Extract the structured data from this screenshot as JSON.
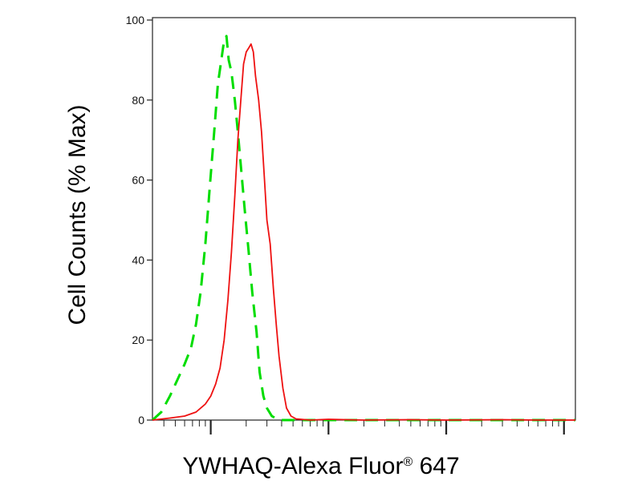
{
  "chart_data": {
    "type": "line",
    "xlabel_main": "YWHAQ-Alexa Fluor",
    "xlabel_sup": "®",
    "xlabel_tail": " 647",
    "ylabel": "Cell Counts (% Max)",
    "x_scale": "log",
    "xlim": [
      0.32,
      1250
    ],
    "ylim": [
      0,
      100
    ],
    "yticks": [
      0,
      20,
      40,
      60,
      80,
      100
    ],
    "grid": false,
    "legend": "none",
    "series": [
      {
        "color": "#00dd00",
        "style": "dashed",
        "points": [
          [
            0.32,
            0
          ],
          [
            0.38,
            2
          ],
          [
            0.45,
            6
          ],
          [
            0.52,
            10
          ],
          [
            0.6,
            14
          ],
          [
            0.68,
            18
          ],
          [
            0.75,
            24
          ],
          [
            0.82,
            32
          ],
          [
            0.9,
            44
          ],
          [
            0.98,
            58
          ],
          [
            1.07,
            72
          ],
          [
            1.15,
            84
          ],
          [
            1.23,
            90
          ],
          [
            1.3,
            95
          ],
          [
            1.36,
            96
          ],
          [
            1.42,
            90
          ],
          [
            1.5,
            87
          ],
          [
            1.6,
            80
          ],
          [
            1.7,
            72
          ],
          [
            1.82,
            62
          ],
          [
            1.95,
            52
          ],
          [
            2.1,
            42
          ],
          [
            2.25,
            32
          ],
          [
            2.45,
            22
          ],
          [
            2.6,
            12
          ],
          [
            2.8,
            6
          ],
          [
            3.0,
            3
          ],
          [
            3.3,
            1
          ],
          [
            3.8,
            0
          ],
          [
            5,
            0
          ],
          [
            10,
            0
          ],
          [
            30,
            0
          ],
          [
            100,
            0
          ],
          [
            400,
            0
          ],
          [
            1250,
            0
          ]
        ]
      },
      {
        "color": "#ee1111",
        "style": "solid",
        "points": [
          [
            0.32,
            0
          ],
          [
            0.45,
            0.5
          ],
          [
            0.6,
            1
          ],
          [
            0.75,
            2
          ],
          [
            0.9,
            4
          ],
          [
            1.0,
            6
          ],
          [
            1.1,
            9
          ],
          [
            1.2,
            13
          ],
          [
            1.3,
            20
          ],
          [
            1.4,
            30
          ],
          [
            1.5,
            42
          ],
          [
            1.6,
            56
          ],
          [
            1.7,
            70
          ],
          [
            1.8,
            80
          ],
          [
            1.9,
            89
          ],
          [
            2.0,
            92
          ],
          [
            2.1,
            93
          ],
          [
            2.2,
            94
          ],
          [
            2.3,
            92
          ],
          [
            2.4,
            86
          ],
          [
            2.55,
            80
          ],
          [
            2.7,
            72
          ],
          [
            2.85,
            61
          ],
          [
            3.0,
            50
          ],
          [
            3.2,
            44
          ],
          [
            3.4,
            33
          ],
          [
            3.6,
            24
          ],
          [
            3.8,
            16
          ],
          [
            4.1,
            8
          ],
          [
            4.4,
            3
          ],
          [
            4.8,
            1
          ],
          [
            5.3,
            0.3
          ],
          [
            7,
            0
          ],
          [
            10,
            0.2
          ],
          [
            20,
            0
          ],
          [
            50,
            0.1
          ],
          [
            100,
            0
          ],
          [
            300,
            0.1
          ],
          [
            600,
            0
          ],
          [
            1250,
            0
          ]
        ]
      }
    ]
  }
}
